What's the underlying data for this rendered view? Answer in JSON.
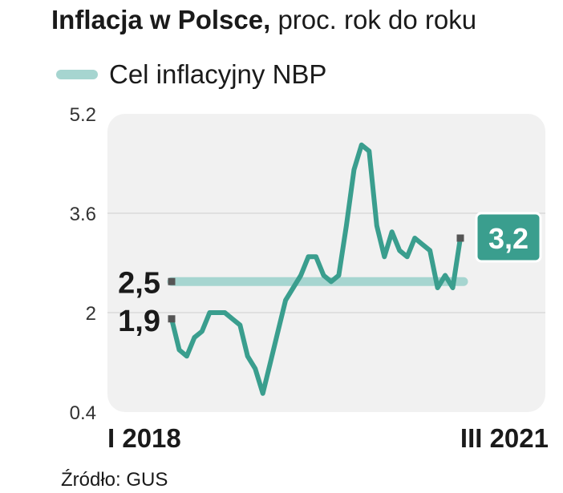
{
  "title": {
    "bold": "Inflacja w Polsce,",
    "rest": "proc. rok do roku"
  },
  "legend": {
    "label": "Cel inflacyjny NBP"
  },
  "source": "Źródło: GUS",
  "colors": {
    "series": "#3a9e8e",
    "target": "#a6d5d0",
    "plot_bg": "#f1f1f1",
    "grid": "#cfcfcf",
    "callout_bg": "#3a9e8e",
    "marker": "#555555"
  },
  "chart_data": {
    "type": "line",
    "title": "Inflacja w Polsce, proc. rok do roku",
    "xlabel": "",
    "ylabel": "",
    "x_labels": {
      "start": "I 2018",
      "end": "III 2021"
    },
    "ylim": [
      0.4,
      5.2
    ],
    "yticks": [
      "0.4",
      "2",
      "3.6",
      "5.2"
    ],
    "grid": true,
    "legend_position": "top-left",
    "series": [
      {
        "name": "",
        "values": [
          1.9,
          1.4,
          1.3,
          1.6,
          1.7,
          2.0,
          2.0,
          2.0,
          1.9,
          1.8,
          1.3,
          1.1,
          0.7,
          1.2,
          1.7,
          2.2,
          2.4,
          2.6,
          2.9,
          2.9,
          2.6,
          2.5,
          2.6,
          3.4,
          4.3,
          4.7,
          4.6,
          3.4,
          2.9,
          3.3,
          3.0,
          2.9,
          3.2,
          3.1,
          3.0,
          2.4,
          2.6,
          2.4,
          3.2
        ]
      }
    ],
    "target": {
      "name": "Cel inflacyjny NBP",
      "value": 2.5,
      "label": "2,5"
    },
    "annotations": [
      {
        "label": "1,9",
        "value": 1.9,
        "position": "start"
      },
      {
        "label": "3,2",
        "value": 3.2,
        "position": "end"
      }
    ]
  }
}
